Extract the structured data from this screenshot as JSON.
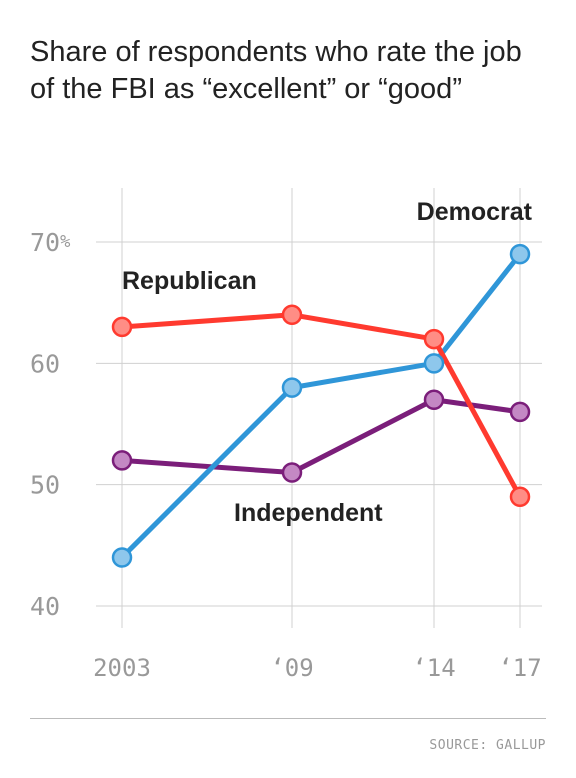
{
  "title": "Share of respondents who rate the job of the FBI as “excellent” or “good”",
  "source": "SOURCE: GALLUP",
  "chart_data": {
    "type": "line",
    "title": "Share of respondents who rate the job of the FBI as “excellent” or “good”",
    "x": [
      2003,
      2009,
      2014,
      2017
    ],
    "x_tick_labels": [
      "2003",
      "‘09",
      "‘14",
      "‘17"
    ],
    "y_tick_labels": [
      "70%",
      "60",
      "50",
      "40"
    ],
    "y_ticks": [
      70,
      60,
      50,
      40
    ],
    "ylim": [
      40,
      70
    ],
    "grid": true,
    "series": [
      {
        "name": "Democrat",
        "color": "#2f96d8",
        "values": [
          44,
          58,
          60,
          69
        ]
      },
      {
        "name": "Republican",
        "color": "#ff3a2f",
        "values": [
          63,
          64,
          62,
          49
        ]
      },
      {
        "name": "Independent",
        "color": "#7b1e7a",
        "values": [
          52,
          51,
          57,
          56
        ]
      }
    ]
  }
}
